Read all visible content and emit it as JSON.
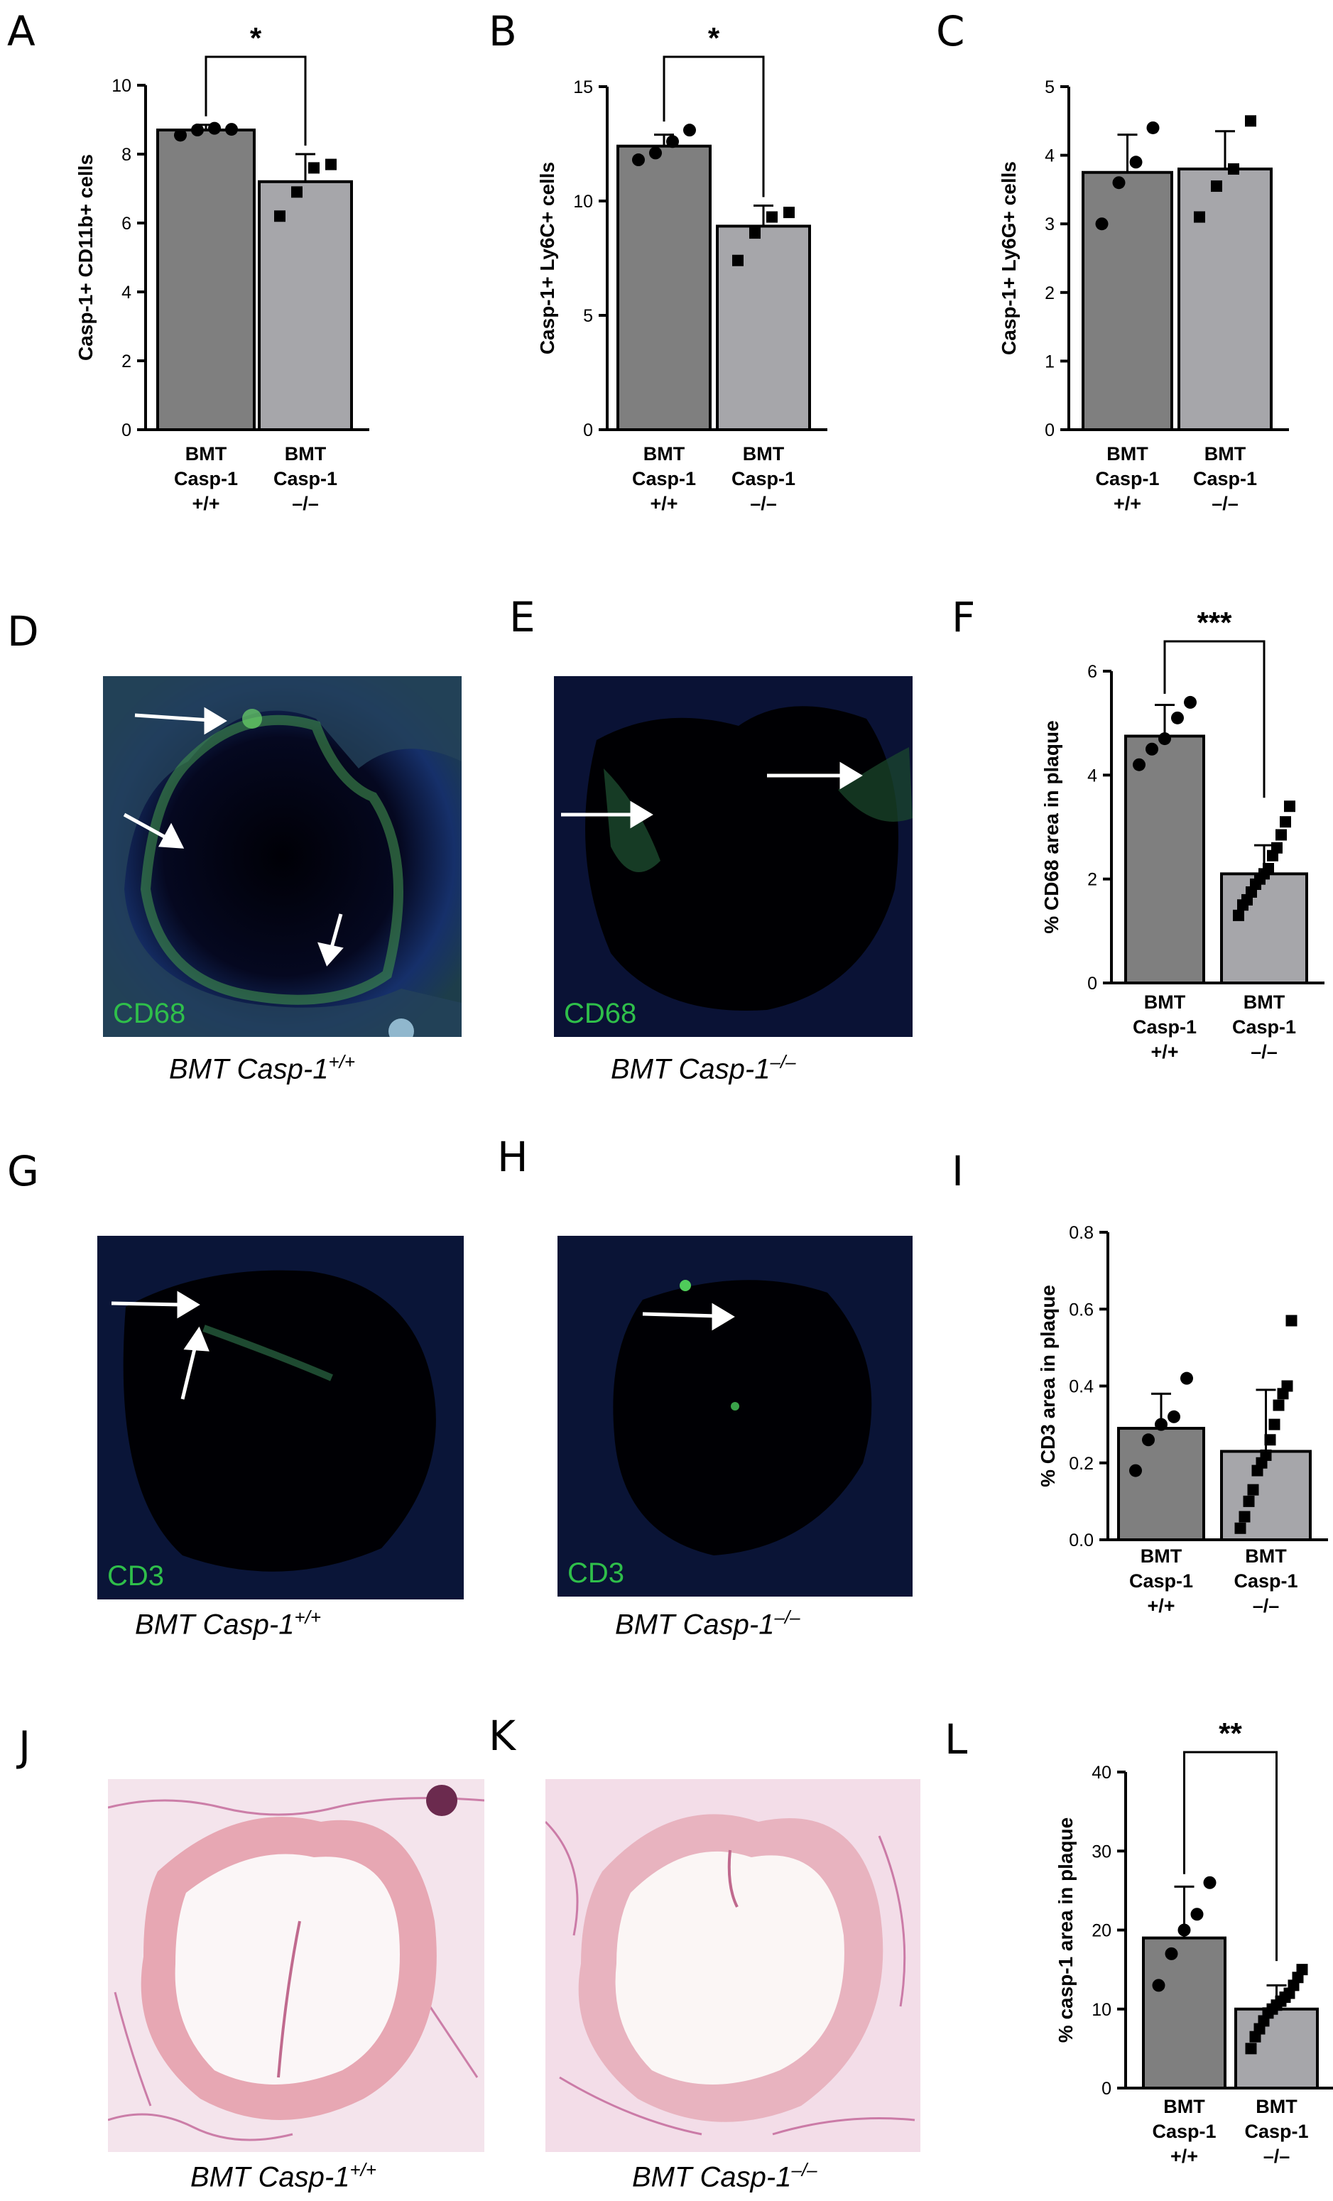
{
  "panel_letters": [
    "A",
    "B",
    "C",
    "D",
    "E",
    "F",
    "G",
    "H",
    "I",
    "J",
    "K",
    "L"
  ],
  "categories": [
    {
      "line1": "BMT",
      "line2": "Casp-1",
      "line3": "+/+"
    },
    {
      "line1": "BMT",
      "line2": "Casp-1",
      "line3": "–/–"
    }
  ],
  "colors": {
    "bar_wt": "#7f7f7f",
    "bar_ko": "#a6a6aa",
    "axis": "#000000",
    "stain_green": "#2fbf4a"
  },
  "captions": {
    "D": {
      "main": "BMT Casp-1",
      "sup": "+/+"
    },
    "E": {
      "main": "BMT Casp-1",
      "sup": "–/–"
    },
    "G": {
      "main": "BMT Casp-1",
      "sup": "+/+"
    },
    "H": {
      "main": "BMT Casp-1",
      "sup": "–/–"
    },
    "J": {
      "main": "BMT Casp-1",
      "sup": "+/+"
    },
    "K": {
      "main": "BMT Casp-1",
      "sup": "–/–"
    }
  },
  "stain_labels": {
    "D": "CD68",
    "E": "CD68",
    "G": "CD3",
    "H": "CD3"
  },
  "image_icons": {
    "D": "fluorescence-micrograph-icon",
    "E": "fluorescence-micrograph-icon",
    "G": "fluorescence-micrograph-icon",
    "H": "fluorescence-micrograph-icon",
    "J": "histology-micrograph-icon",
    "K": "histology-micrograph-icon"
  },
  "chart_data": [
    {
      "id": "A",
      "type": "bar",
      "ylabel": "Casp-1+ CD11b+ cells",
      "ylim": [
        0,
        10
      ],
      "yticks": [
        "0",
        "2",
        "4",
        "6",
        "8",
        "10"
      ],
      "tick_values": [
        0,
        2,
        4,
        6,
        8,
        10
      ],
      "values": [
        8.7,
        7.2
      ],
      "err": [
        0.15,
        0.8
      ],
      "sig": "*",
      "points": [
        [
          8.55,
          8.7,
          8.75,
          8.72
        ],
        [
          6.2,
          6.9,
          7.6,
          7.7
        ]
      ],
      "markers": [
        "circle",
        "square"
      ]
    },
    {
      "id": "B",
      "type": "bar",
      "ylabel": "Casp-1+ Ly6C+ cells",
      "ylim": [
        0,
        15
      ],
      "yticks": [
        "0",
        "5",
        "10",
        "15"
      ],
      "tick_values": [
        0,
        5,
        10,
        15
      ],
      "values": [
        12.4,
        8.9
      ],
      "err": [
        0.5,
        0.9
      ],
      "sig": "*",
      "points": [
        [
          11.8,
          12.1,
          12.6,
          13.1
        ],
        [
          7.4,
          8.6,
          9.3,
          9.5
        ]
      ],
      "markers": [
        "circle",
        "square"
      ]
    },
    {
      "id": "C",
      "type": "bar",
      "ylabel": "Casp-1+ Ly6G+ cells",
      "ylim": [
        0,
        5
      ],
      "yticks": [
        "0",
        "1",
        "2",
        "3",
        "4",
        "5"
      ],
      "tick_values": [
        0,
        1,
        2,
        3,
        4,
        5
      ],
      "values": [
        3.75,
        3.8
      ],
      "err": [
        0.55,
        0.55
      ],
      "sig": "",
      "points": [
        [
          3.0,
          3.6,
          3.9,
          4.4
        ],
        [
          3.1,
          3.55,
          3.8,
          4.5
        ]
      ],
      "markers": [
        "circle",
        "square"
      ]
    },
    {
      "id": "F",
      "type": "bar",
      "ylabel": "% CD68 area in plaque",
      "ylim": [
        0,
        6
      ],
      "yticks": [
        "0",
        "2",
        "4",
        "6"
      ],
      "tick_values": [
        0,
        2,
        4,
        6
      ],
      "values": [
        4.75,
        2.1
      ],
      "err": [
        0.6,
        0.55
      ],
      "sig": "***",
      "points": [
        [
          4.2,
          4.5,
          4.7,
          5.1,
          5.4
        ],
        [
          1.3,
          1.5,
          1.6,
          1.75,
          1.9,
          2.0,
          2.1,
          2.2,
          2.45,
          2.6,
          2.85,
          3.1,
          3.4
        ]
      ],
      "markers": [
        "circle",
        "square"
      ]
    },
    {
      "id": "I",
      "type": "bar",
      "ylabel": "% CD3 area in plaque",
      "ylim": [
        0,
        0.8
      ],
      "yticks": [
        "0.0",
        "0.2",
        "0.4",
        "0.6",
        "0.8"
      ],
      "tick_values": [
        0,
        0.2,
        0.4,
        0.6,
        0.8
      ],
      "values": [
        0.29,
        0.23
      ],
      "err": [
        0.09,
        0.16
      ],
      "sig": "",
      "points": [
        [
          0.18,
          0.26,
          0.3,
          0.32,
          0.42
        ],
        [
          0.03,
          0.06,
          0.1,
          0.13,
          0.18,
          0.2,
          0.22,
          0.26,
          0.3,
          0.35,
          0.38,
          0.4,
          0.57
        ]
      ],
      "markers": [
        "circle",
        "square"
      ]
    },
    {
      "id": "L",
      "type": "bar",
      "ylabel": "% casp-1 area in plaque",
      "ylim": [
        0,
        40
      ],
      "yticks": [
        "0",
        "10",
        "20",
        "30",
        "40"
      ],
      "tick_values": [
        0,
        10,
        20,
        30,
        40
      ],
      "values": [
        19,
        10
      ],
      "err": [
        6.5,
        3
      ],
      "sig": "**",
      "points": [
        [
          13,
          17,
          20,
          22,
          26
        ],
        [
          5,
          6.5,
          7.5,
          8.5,
          9.5,
          10,
          10.5,
          11,
          11.5,
          12,
          13,
          14,
          15
        ]
      ],
      "markers": [
        "circle",
        "square"
      ]
    }
  ]
}
